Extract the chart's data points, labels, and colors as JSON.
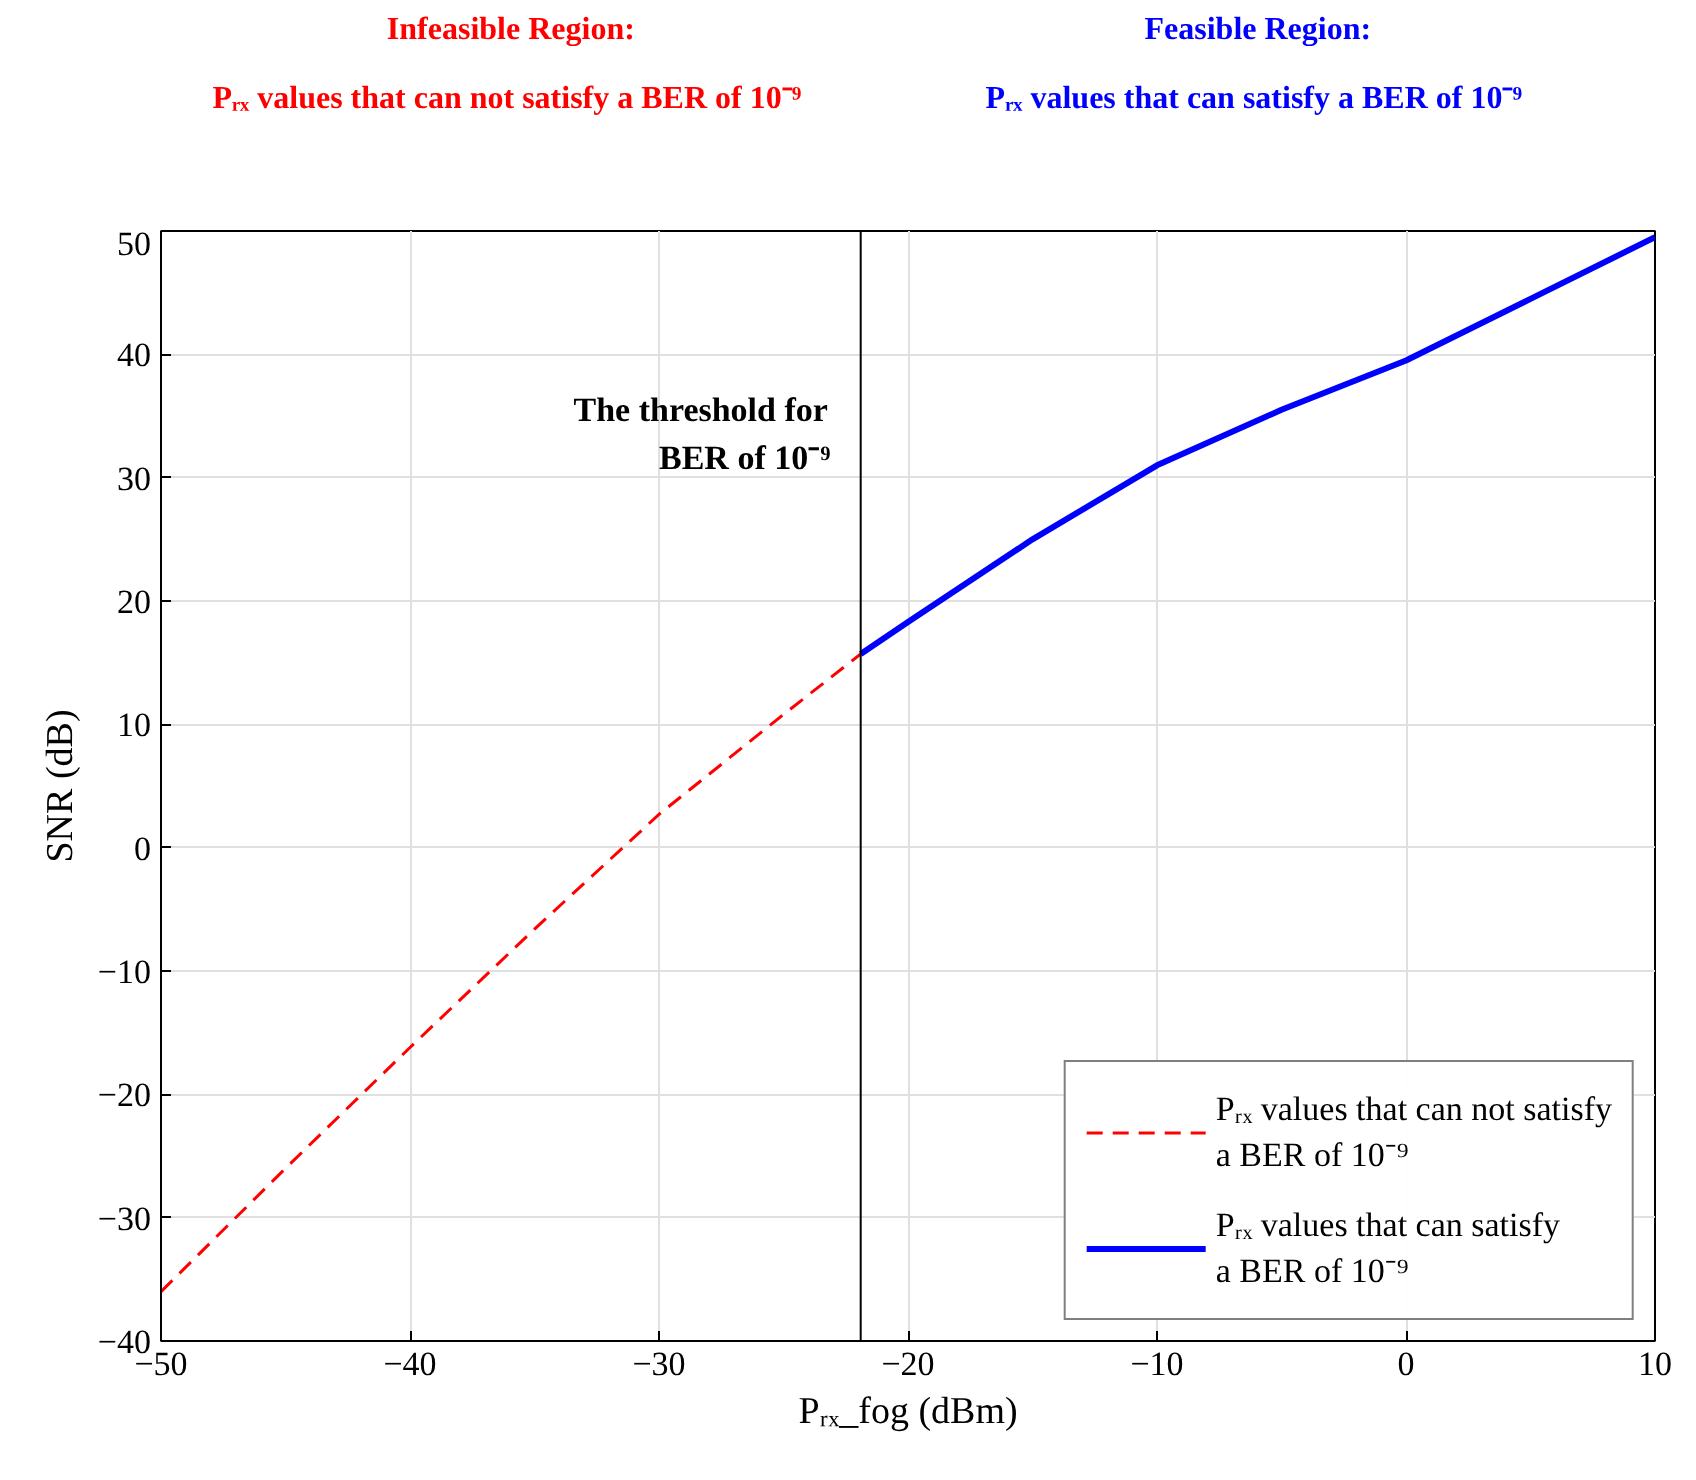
{
  "chart_data": {
    "type": "line",
    "xlabel": "Pᵣₓ_fog (dBm)",
    "ylabel": "SNR (dB)",
    "xlim": [
      -50,
      10
    ],
    "xticks": [
      -50,
      -40,
      -30,
      -20,
      -10,
      0,
      10
    ],
    "ylim": [
      -40,
      50
    ],
    "yticks": [
      -40,
      -30,
      -20,
      -10,
      0,
      10,
      20,
      30,
      40,
      50
    ],
    "grid": true,
    "legend": "bottom right",
    "series": [
      {
        "name": "Pᵣₓ values that can not satisfy\na BER of 10⁻⁹",
        "color": "#ff0000",
        "line_style": "dashed",
        "x": [
          -50,
          -45,
          -40,
          -35,
          -30,
          -25,
          -21.9
        ],
        "values": [
          -36,
          -26,
          -16.2,
          -6.6,
          2.7,
          10.8,
          15.7
        ]
      },
      {
        "name": "Pᵣₓ values that can satisfy\na BER of 10⁻⁹",
        "color": "#0000ff",
        "line_style": "solid",
        "x": [
          -21.9,
          -20,
          -15,
          -10,
          -5,
          0,
          5,
          10
        ],
        "values": [
          15.7,
          18.3,
          25.0,
          31.0,
          35.5,
          39.5,
          44.5,
          49.5
        ]
      }
    ],
    "ref_lines": [
      {
        "axis": "x",
        "value": -21.9,
        "label": "The threshold for\nBER of 10⁻⁹",
        "color": "#000000"
      }
    ],
    "annotations": [
      "Infeasible Region:\nPᵣₓ values that  can not satisfy a BER of 10⁻⁹",
      "Feasible Region:\nPᵣₓ values that  can satisfy a BER of 10⁻⁹"
    ]
  }
}
